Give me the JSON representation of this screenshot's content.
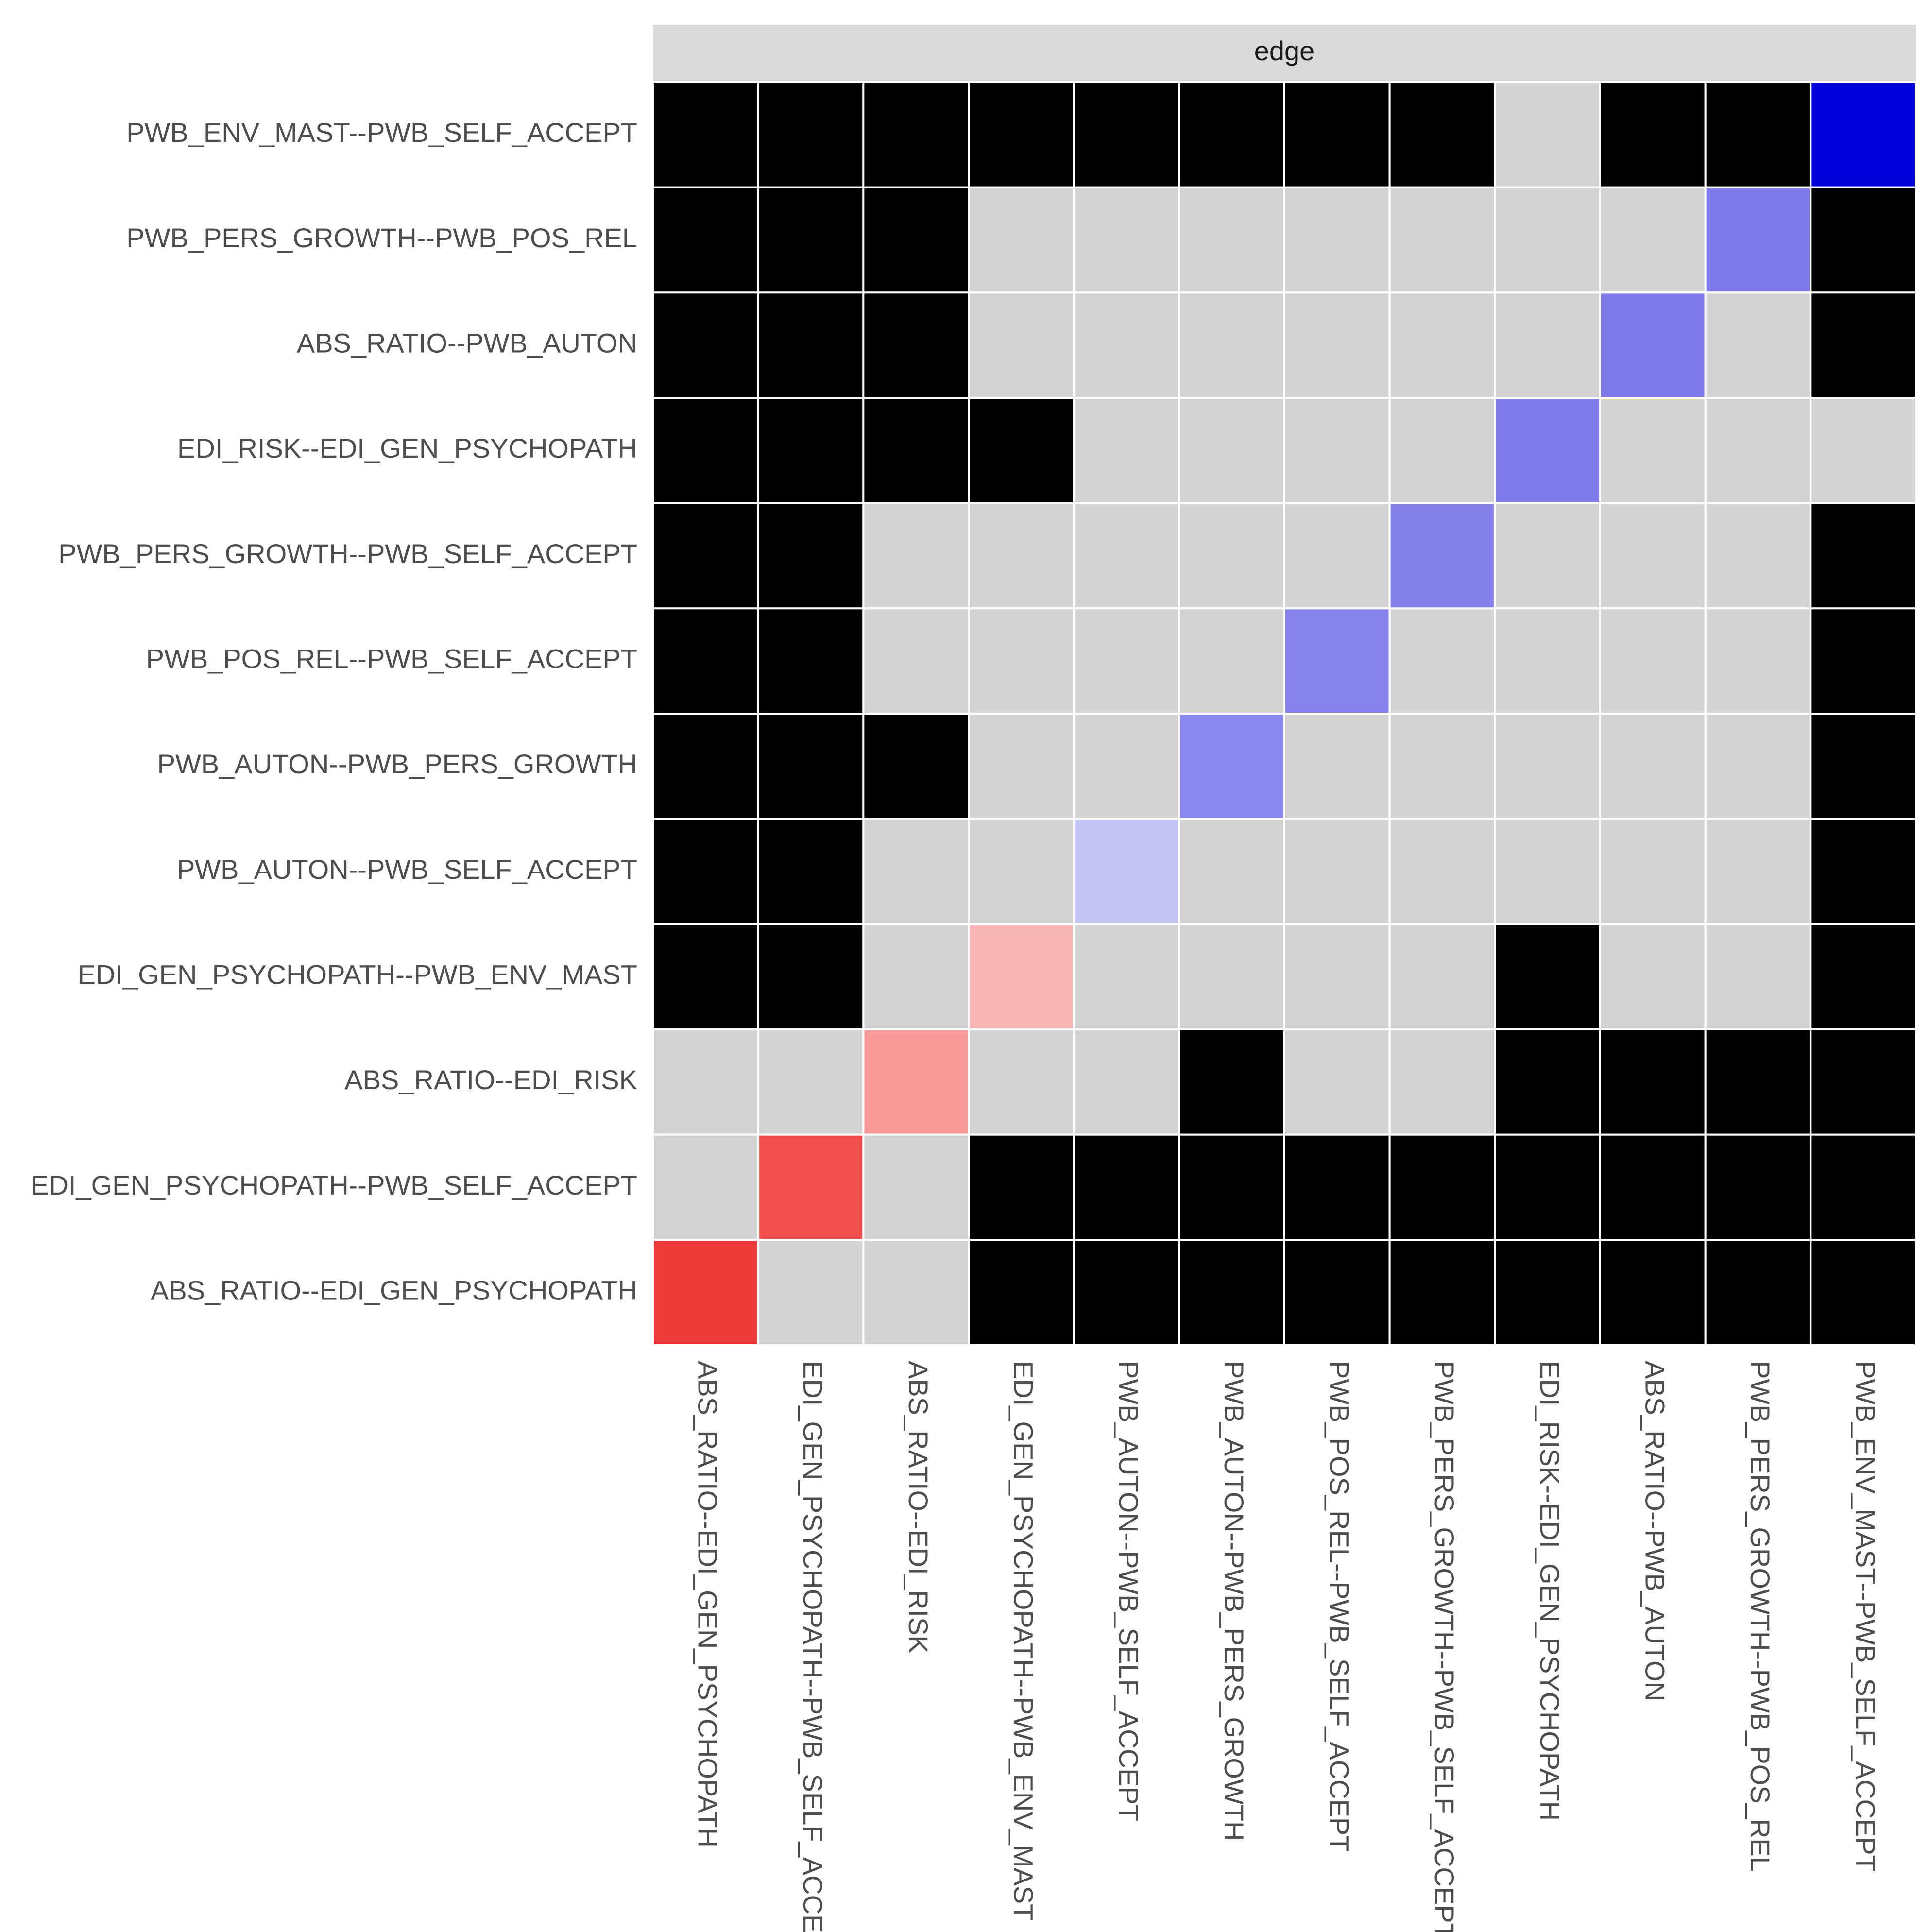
{
  "chart_data": {
    "type": "heatmap",
    "facet_strip": "edge",
    "rows": [
      "PWB_ENV_MAST--PWB_SELF_ACCEPT",
      "PWB_PERS_GROWTH--PWB_POS_REL",
      "ABS_RATIO--PWB_AUTON",
      "EDI_RISK--EDI_GEN_PSYCHOPATH",
      "PWB_PERS_GROWTH--PWB_SELF_ACCEPT",
      "PWB_POS_REL--PWB_SELF_ACCEPT",
      "PWB_AUTON--PWB_PERS_GROWTH",
      "PWB_AUTON--PWB_SELF_ACCEPT",
      "EDI_GEN_PSYCHOPATH--PWB_ENV_MAST",
      "ABS_RATIO--EDI_RISK",
      "EDI_GEN_PSYCHOPATH--PWB_SELF_ACCEPT",
      "ABS_RATIO--EDI_GEN_PSYCHOPATH"
    ],
    "columns": [
      "ABS_RATIO--EDI_GEN_PSYCHOPATH",
      "EDI_GEN_PSYCHOPATH--PWB_SELF_ACCEPT",
      "ABS_RATIO--EDI_RISK",
      "EDI_GEN_PSYCHOPATH--PWB_ENV_MAST",
      "PWB_AUTON--PWB_SELF_ACCEPT",
      "PWB_AUTON--PWB_PERS_GROWTH",
      "PWB_POS_REL--PWB_SELF_ACCEPT",
      "PWB_PERS_GROWTH--PWB_SELF_ACCEPT",
      "EDI_RISK--EDI_GEN_PSYCHOPATH",
      "ABS_RATIO--PWB_AUTON",
      "PWB_PERS_GROWTH--PWB_POS_REL",
      "PWB_ENV_MAST--PWB_SELF_ACCEPT"
    ],
    "cell_colors": [
      [
        "#000000",
        "#000000",
        "#000000",
        "#000000",
        "#000000",
        "#000000",
        "#000000",
        "#000000",
        "#d3d3d3",
        "#000000",
        "#000000",
        "#0000dc"
      ],
      [
        "#000000",
        "#000000",
        "#000000",
        "#d3d3d3",
        "#d3d3d3",
        "#d3d3d3",
        "#d3d3d3",
        "#d3d3d3",
        "#d3d3d3",
        "#d3d3d3",
        "#7b7ae8",
        "#000000"
      ],
      [
        "#000000",
        "#000000",
        "#000000",
        "#d3d3d3",
        "#d3d3d3",
        "#d3d3d3",
        "#d3d3d3",
        "#d3d3d3",
        "#d3d3d3",
        "#7b7ae8",
        "#d3d3d3",
        "#000000"
      ],
      [
        "#000000",
        "#000000",
        "#000000",
        "#000000",
        "#d3d3d3",
        "#d3d3d3",
        "#d3d3d3",
        "#d3d3d3",
        "#7e7dea",
        "#d3d3d3",
        "#d3d3d3",
        "#d3d3d3"
      ],
      [
        "#000000",
        "#000000",
        "#d3d3d3",
        "#d3d3d3",
        "#d3d3d3",
        "#d3d3d3",
        "#d3d3d3",
        "#8281ec",
        "#d3d3d3",
        "#d3d3d3",
        "#d3d3d3",
        "#000000"
      ],
      [
        "#000000",
        "#000000",
        "#d3d3d3",
        "#d3d3d3",
        "#d3d3d3",
        "#d3d3d3",
        "#8584ed",
        "#d3d3d3",
        "#d3d3d3",
        "#d3d3d3",
        "#d3d3d3",
        "#000000"
      ],
      [
        "#000000",
        "#000000",
        "#000000",
        "#d3d3d3",
        "#d3d3d3",
        "#8a89ef",
        "#d3d3d3",
        "#d3d3d3",
        "#d3d3d3",
        "#d3d3d3",
        "#d3d3d3",
        "#000000"
      ],
      [
        "#000000",
        "#000000",
        "#d3d3d3",
        "#d3d3d3",
        "#c5c5f6",
        "#d3d3d3",
        "#d3d3d3",
        "#d3d3d3",
        "#d3d3d3",
        "#d3d3d3",
        "#d3d3d3",
        "#000000"
      ],
      [
        "#000000",
        "#000000",
        "#d3d3d3",
        "#fbb7b7",
        "#d3d3d3",
        "#d3d3d3",
        "#d3d3d3",
        "#d3d3d3",
        "#000000",
        "#d3d3d3",
        "#d3d3d3",
        "#000000"
      ],
      [
        "#d3d3d3",
        "#d3d3d3",
        "#fa9999",
        "#d3d3d3",
        "#d3d3d3",
        "#000000",
        "#d3d3d3",
        "#d3d3d3",
        "#000000",
        "#000000",
        "#000000",
        "#000000"
      ],
      [
        "#d3d3d3",
        "#f24f4f",
        "#d3d3d3",
        "#000000",
        "#000000",
        "#000000",
        "#000000",
        "#000000",
        "#000000",
        "#000000",
        "#000000",
        "#000000"
      ],
      [
        "#ee3b3b",
        "#d3d3d3",
        "#d3d3d3",
        "#000000",
        "#000000",
        "#000000",
        "#000000",
        "#000000",
        "#000000",
        "#000000",
        "#000000",
        "#000000"
      ]
    ]
  }
}
